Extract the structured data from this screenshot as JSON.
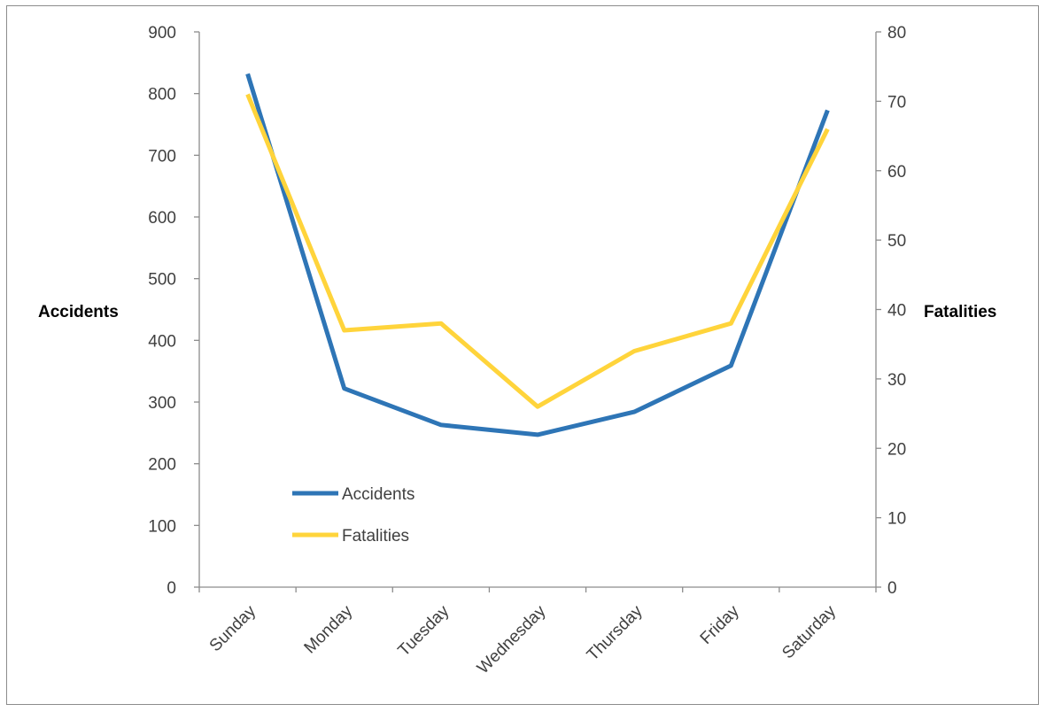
{
  "chart_data": {
    "type": "line",
    "categories": [
      "Sunday",
      "Monday",
      "Tuesday",
      "Wednesday",
      "Thursday",
      "Friday",
      "Saturday"
    ],
    "series": [
      {
        "name": "Accidents",
        "axis": "left",
        "color": "#2E75B6",
        "values": [
          832,
          322,
          263,
          247,
          284,
          359,
          773
        ]
      },
      {
        "name": "Fatalities",
        "axis": "right",
        "color": "#FFD43B",
        "values": [
          71,
          37,
          38,
          26,
          34,
          38,
          66
        ]
      }
    ],
    "ylabel": "Accidents",
    "y2label": "Fatalities",
    "ylim": [
      0,
      900
    ],
    "y2lim": [
      0,
      80
    ],
    "yticks": [
      0,
      100,
      200,
      300,
      400,
      500,
      600,
      700,
      800,
      900
    ],
    "y2ticks": [
      0,
      10,
      20,
      30,
      40,
      50,
      60,
      70,
      80
    ],
    "grid": false,
    "legend": "bottom-left"
  }
}
